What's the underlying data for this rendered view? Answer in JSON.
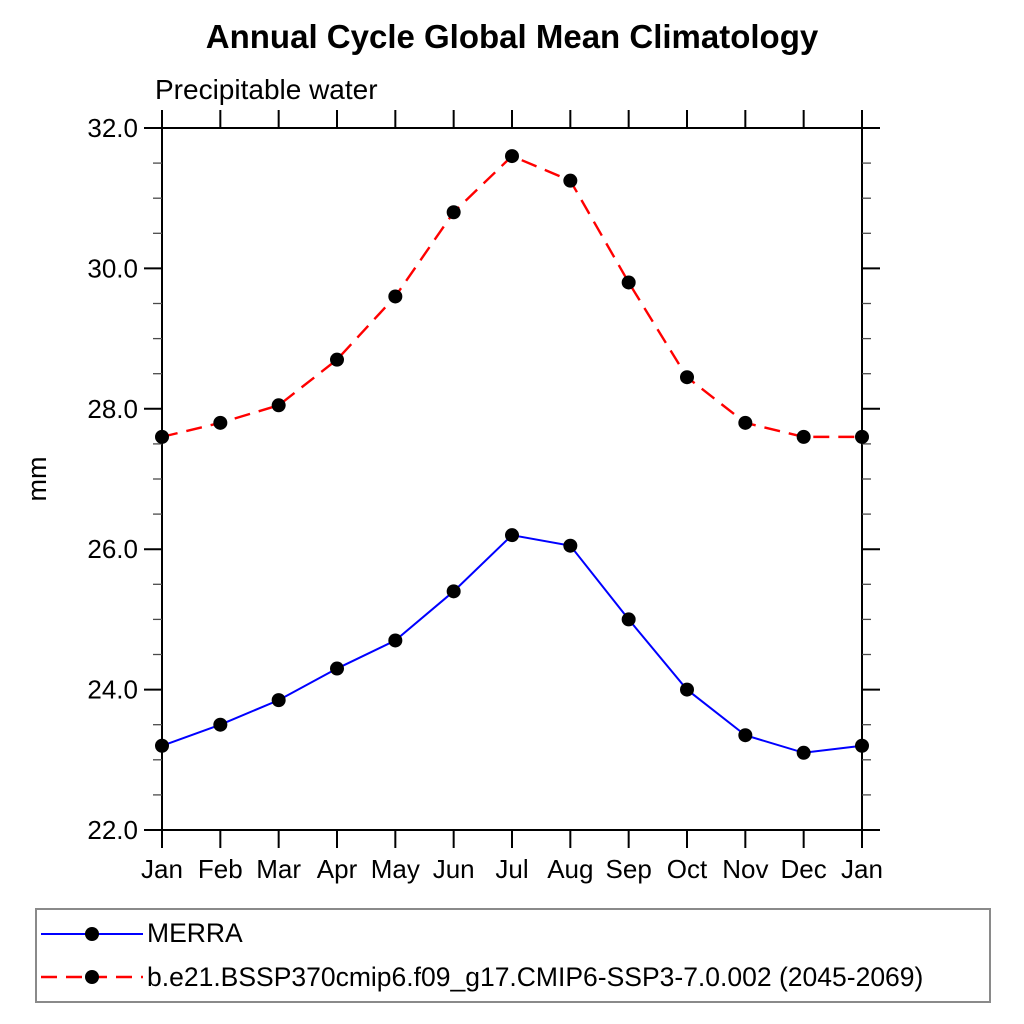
{
  "chart_data": {
    "type": "line",
    "title": "Annual Cycle Global Mean Climatology",
    "subtitle": "Precipitable water",
    "ylabel": "mm",
    "xlabel": "",
    "x_categories": [
      "Jan",
      "Feb",
      "Mar",
      "Apr",
      "May",
      "Jun",
      "Jul",
      "Aug",
      "Sep",
      "Oct",
      "Nov",
      "Dec",
      "Jan"
    ],
    "ylim": [
      22.0,
      32.0
    ],
    "y_major_ticks": [
      22.0,
      24.0,
      26.0,
      28.0,
      30.0,
      32.0
    ],
    "y_tick_labels": [
      "22.0",
      "24.0",
      "26.0",
      "28.0",
      "30.0",
      "32.0"
    ],
    "y_minor_step": 0.5,
    "grid": false,
    "legend_position": "bottom-left",
    "frame_color": "#000000",
    "marker_shape": "filled-circle",
    "series": [
      {
        "name": "MERRA",
        "color": "#0000ff",
        "line_style": "solid",
        "marker_color": "#000000",
        "values": [
          23.2,
          23.5,
          23.85,
          24.3,
          24.7,
          25.4,
          26.2,
          26.05,
          25.0,
          24.0,
          23.35,
          23.1,
          23.2
        ]
      },
      {
        "name": "b.e21.BSSP370cmip6.f09_g17.CMIP6-SSP3-7.0.002 (2045-2069)",
        "color": "#ff0000",
        "line_style": "dashed",
        "marker_color": "#000000",
        "values": [
          27.6,
          27.8,
          28.05,
          28.7,
          29.6,
          30.8,
          31.6,
          31.25,
          29.8,
          28.45,
          27.8,
          27.6,
          27.6
        ]
      }
    ]
  }
}
